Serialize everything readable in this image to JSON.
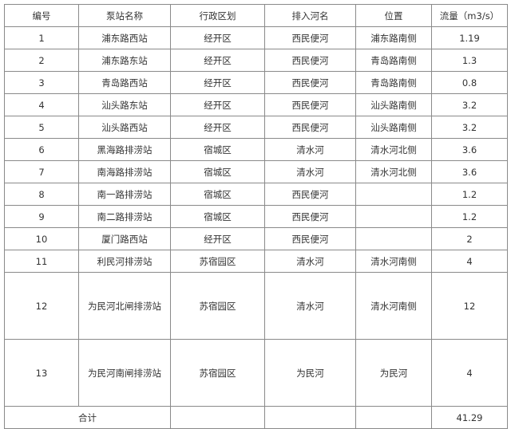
{
  "table": {
    "header": [
      "编号",
      "泵站名称",
      "行政区划",
      "排入河名",
      "位置",
      "流量（m3/s）"
    ],
    "rows": [
      [
        1,
        "浦东路西站",
        "经开区",
        "西民便河",
        "浦东路南侧",
        1.19
      ],
      [
        2,
        "浦东路东站",
        "经开区",
        "西民便河",
        "青岛路南侧",
        1.3
      ],
      [
        3,
        "青岛路西站",
        "经开区",
        "西民便河",
        "青岛路南侧",
        0.8
      ],
      [
        4,
        "汕头路东站",
        "经开区",
        "西民便河",
        "汕头路南侧",
        3.2
      ],
      [
        5,
        "汕头路西站",
        "经开区",
        "西民便河",
        "汕头路南侧",
        3.2
      ],
      [
        6,
        "黑海路排涝站",
        "宿城区",
        "清水河",
        "清水河北侧",
        3.6
      ],
      [
        7,
        "南海路排涝站",
        "宿城区",
        "清水河",
        "清水河北侧",
        3.6
      ],
      [
        8,
        "南一路排涝站",
        "宿城区",
        "西民便河",
        null,
        1.2
      ],
      [
        9,
        "南二路排涝站",
        "宿城区",
        "西民便河",
        null,
        1.2
      ],
      [
        10,
        "厦门路西站",
        "经开区",
        "西民便河",
        null,
        2
      ],
      [
        11,
        "利民河排涝站",
        "苏宿园区",
        "清水河",
        "清水河南侧",
        4
      ],
      [
        12,
        "为民河北闸排涝站",
        "苏宿园区",
        "清水河",
        "清水河南侧",
        12
      ],
      [
        13,
        "为民河南闸排涝站",
        "苏宿园区",
        "为民河",
        "为民河",
        4
      ]
    ],
    "total": {
      "label": "合计",
      "value": 41.29
    }
  }
}
